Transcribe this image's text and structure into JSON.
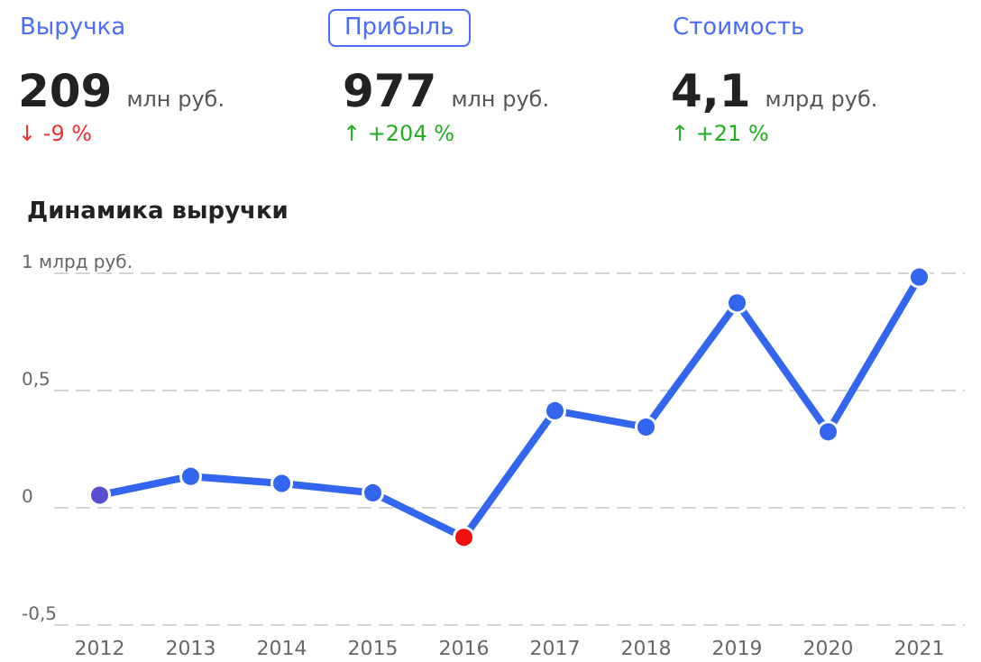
{
  "chart_data": [
    {
      "type": "other",
      "annotations": [
        "Выручка",
        "209",
        "млн руб.",
        "↓ -9 %",
        "Прибыль",
        "977",
        "млн руб.",
        "↑ +204 %",
        "Стоимость",
        "4,1",
        "млрд руб.",
        "↑ +21 %"
      ],
      "colors": [
        "#4a6cf7",
        "#222222",
        "#555555",
        "#f03030",
        "#4a6cf7",
        "#222222",
        "#555555",
        "#22b022",
        "#4a6cf7",
        "#222222",
        "#555555",
        "#22b022"
      ]
    },
    {
      "type": "line",
      "title": "Динамика выручки",
      "categories": [
        "2012",
        "2013",
        "2014",
        "2015",
        "2016",
        "2017",
        "2018",
        "2019",
        "2020",
        "2021"
      ],
      "series": [
        {
          "color": "#3366ee",
          "colors": [
            "#5a4fd0",
            "#3366ee",
            "#3366ee",
            "#3366ee",
            "#f01010",
            "#3366ee",
            "#3366ee",
            "#3366ee",
            "#3366ee",
            "#3366ee"
          ],
          "values": [
            0.05,
            0.13,
            0.1,
            0.06,
            -0.13,
            0.41,
            0.34,
            0.87,
            0.32,
            0.98
          ]
        }
      ],
      "ylim": [
        -0.5,
        1
      ],
      "yticks": [
        {
          "value": -0.5,
          "label": "-0,5"
        },
        0,
        {
          "value": 0.5,
          "label": "0,5"
        },
        {
          "value": 1,
          "label": "1 млрд руб."
        }
      ],
      "grid": "y",
      "marker": "circle",
      "line_style": "solid"
    }
  ]
}
